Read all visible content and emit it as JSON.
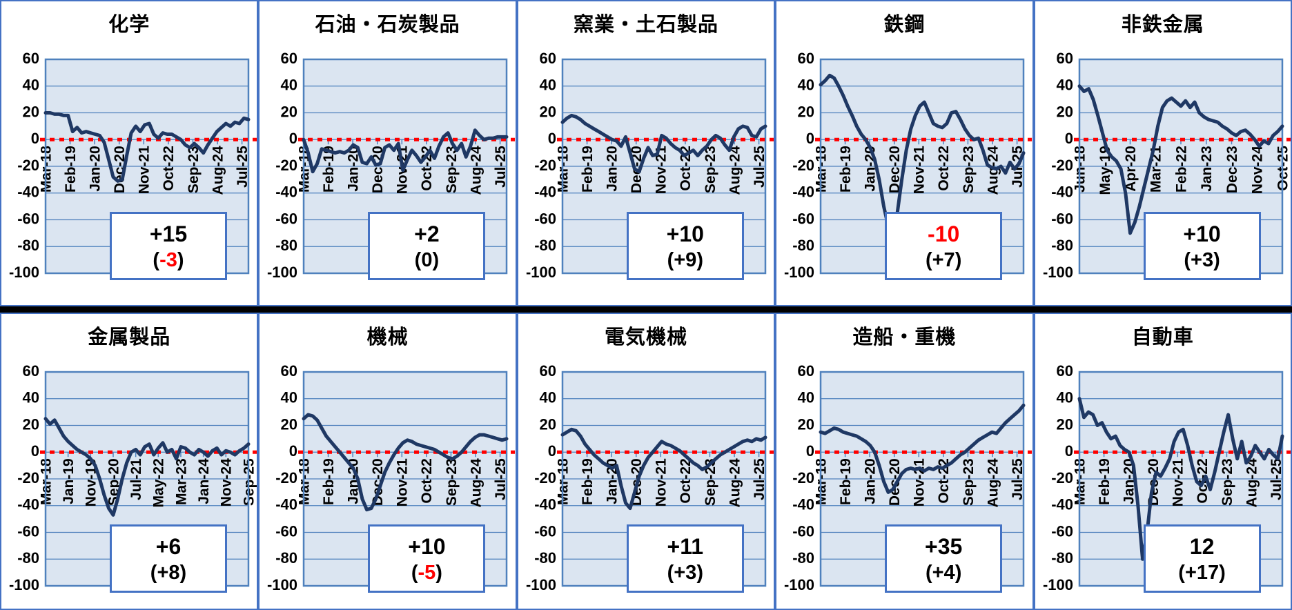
{
  "axis": {
    "y_max": 60,
    "y_min": -100,
    "y_ticks": [
      60,
      40,
      20,
      0,
      -20,
      -40,
      -60,
      -80,
      -100
    ]
  },
  "colors": {
    "cell_border": "#4472c4",
    "grid_blue": "#4f81bd",
    "plot_fill": "#dbe5f1",
    "series_navy": "#1f3864",
    "zero_line_red": "#ff0000",
    "negative_red": "#ff0000"
  },
  "chart_data": [
    {
      "type": "line",
      "title": "化学",
      "ylim": [
        -100,
        60
      ],
      "grid": true,
      "legend": "none",
      "x_labels": [
        "Mar-18",
        "Feb-19",
        "Jan-20",
        "Dec-20",
        "Nov-21",
        "Oct-22",
        "Sep-23",
        "Aug-24",
        "Jul-25"
      ],
      "tick_step_frac": 0.121,
      "values": [
        20,
        20,
        19,
        19,
        18,
        18,
        6,
        9,
        5,
        6,
        5,
        4,
        3,
        -2,
        -15,
        -28,
        -31,
        -30,
        -12,
        5,
        10,
        6,
        11,
        12,
        4,
        1,
        5,
        4,
        4,
        2,
        0,
        -4,
        -6,
        -3,
        -6,
        -10,
        -4,
        1,
        6,
        9,
        12,
        10,
        13,
        12,
        16,
        15
      ],
      "box_value": "+15",
      "box_value_red": false,
      "box_change_open": "(",
      "box_change_value": "-3",
      "box_change_red": true,
      "box_change_close": ")"
    },
    {
      "type": "line",
      "title": "石油・石炭製品",
      "ylim": [
        -100,
        60
      ],
      "grid": true,
      "legend": "none",
      "x_labels": [
        "Mar-18",
        "Feb-19",
        "Jan-20",
        "Dec-20",
        "Nov-21",
        "Oct-22",
        "Sep-23",
        "Aug-24",
        "Jul-25"
      ],
      "tick_step_frac": 0.121,
      "values": [
        0,
        -10,
        -24,
        -18,
        -7,
        -8,
        -9,
        -10,
        -9,
        -10,
        -8,
        -4,
        -6,
        -17,
        -18,
        -13,
        -19,
        -18,
        -6,
        -4,
        -8,
        -3,
        -23,
        -15,
        -8,
        -12,
        -17,
        -13,
        -8,
        -14,
        -5,
        2,
        5,
        -3,
        -8,
        -3,
        -13,
        -5,
        7,
        3,
        0,
        1,
        1,
        2,
        2,
        2
      ],
      "box_value": "+2",
      "box_value_red": false,
      "box_change_open": "(",
      "box_change_value": "0",
      "box_change_red": false,
      "box_change_close": ")"
    },
    {
      "type": "line",
      "title": "窯業・土石製品",
      "ylim": [
        -100,
        60
      ],
      "grid": true,
      "legend": "none",
      "x_labels": [
        "Mar-18",
        "Feb-19",
        "Jan-20",
        "Dec-20",
        "Nov-21",
        "Oct-22",
        "Sep-23",
        "Aug-24",
        "Jul-25"
      ],
      "tick_step_frac": 0.121,
      "values": [
        13,
        16,
        18,
        17,
        15,
        12,
        10,
        8,
        6,
        4,
        2,
        0,
        -1,
        -5,
        2,
        -10,
        -22,
        -24,
        -14,
        -6,
        -12,
        -11,
        3,
        1,
        -3,
        -6,
        -8,
        -12,
        -10,
        -8,
        -12,
        -8,
        -5,
        0,
        3,
        1,
        -4,
        -8,
        2,
        8,
        10,
        9,
        3,
        2,
        8,
        10
      ],
      "box_value": "+10",
      "box_value_red": false,
      "box_change_open": "(",
      "box_change_value": "+9",
      "box_change_red": false,
      "box_change_close": ")"
    },
    {
      "type": "line",
      "title": "鉄鋼",
      "ylim": [
        -100,
        60
      ],
      "grid": true,
      "legend": "none",
      "x_labels": [
        "Mar-18",
        "Feb-19",
        "Jan-20",
        "Dec-20",
        "Nov-21",
        "Oct-22",
        "Sep-23",
        "Aug-24",
        "Jul-25"
      ],
      "tick_step_frac": 0.121,
      "values": [
        41,
        44,
        48,
        46,
        40,
        33,
        25,
        18,
        10,
        4,
        0,
        -6,
        -15,
        -30,
        -50,
        -65,
        -70,
        -55,
        -30,
        -8,
        8,
        18,
        25,
        28,
        20,
        12,
        10,
        9,
        12,
        20,
        21,
        15,
        8,
        3,
        0,
        1,
        -8,
        -19,
        -21,
        -22,
        -20,
        -25,
        -17,
        -22,
        -18,
        -10
      ],
      "box_value": "-10",
      "box_value_red": true,
      "box_change_open": "(",
      "box_change_value": "+7",
      "box_change_red": false,
      "box_change_close": ")"
    },
    {
      "type": "line",
      "title": "非鉄金属",
      "ylim": [
        -100,
        60
      ],
      "grid": true,
      "legend": "none",
      "x_labels": [
        "Jun-18",
        "May-19",
        "Apr-20",
        "Mar-21",
        "Feb-22",
        "Jan-23",
        "Dec-23",
        "Nov-24",
        "Oct-25"
      ],
      "tick_step_frac": 0.125,
      "values": [
        40,
        36,
        38,
        30,
        18,
        5,
        -8,
        -13,
        -16,
        -22,
        -40,
        -70,
        -62,
        -50,
        -36,
        -22,
        -8,
        10,
        24,
        29,
        31,
        28,
        25,
        29,
        24,
        28,
        20,
        17,
        15,
        14,
        13,
        10,
        8,
        5,
        3,
        6,
        7,
        4,
        0,
        -5,
        -1,
        -3,
        3,
        6,
        10
      ],
      "box_value": "+10",
      "box_value_red": false,
      "box_change_open": "(",
      "box_change_value": "+3",
      "box_change_red": false,
      "box_change_close": ")"
    },
    {
      "type": "line",
      "title": "金属製品",
      "ylim": [
        -100,
        60
      ],
      "grid": true,
      "legend": "none",
      "x_labels": [
        "Mar-18",
        "Jan-19",
        "Nov-19",
        "Sep-20",
        "Jul-21",
        "May-22",
        "Mar-23",
        "Jan-24",
        "Nov-24",
        "Sep-25"
      ],
      "tick_step_frac": 0.1111,
      "values": [
        25,
        21,
        24,
        18,
        12,
        8,
        5,
        2,
        0,
        -2,
        -5,
        -10,
        -20,
        -32,
        -42,
        -47,
        -35,
        -20,
        -8,
        0,
        2,
        -2,
        4,
        6,
        -2,
        3,
        7,
        0,
        2,
        -5,
        4,
        3,
        0,
        -2,
        2,
        0,
        -3,
        1,
        3,
        -2,
        1,
        0,
        -2,
        1,
        3,
        6
      ],
      "box_value": "+6",
      "box_value_red": false,
      "box_change_open": "(",
      "box_change_value": "+8",
      "box_change_red": false,
      "box_change_close": ")"
    },
    {
      "type": "line",
      "title": "機械",
      "ylim": [
        -100,
        60
      ],
      "grid": true,
      "legend": "none",
      "x_labels": [
        "Mar-18",
        "Feb-19",
        "Jan-20",
        "Dec-20",
        "Nov-21",
        "Oct-22",
        "Sep-23",
        "Aug-24",
        "Jul-25"
      ],
      "tick_step_frac": 0.121,
      "values": [
        25,
        28,
        27,
        24,
        18,
        12,
        8,
        4,
        0,
        -4,
        -8,
        -12,
        -20,
        -35,
        -43,
        -42,
        -35,
        -25,
        -15,
        -8,
        -2,
        3,
        7,
        9,
        8,
        6,
        5,
        4,
        3,
        2,
        0,
        -2,
        -4,
        -5,
        -3,
        0,
        4,
        8,
        11,
        13,
        13,
        12,
        11,
        10,
        9,
        10
      ],
      "box_value": "+10",
      "box_value_red": false,
      "box_change_open": "(",
      "box_change_value": "-5",
      "box_change_red": true,
      "box_change_close": ")"
    },
    {
      "type": "line",
      "title": "電気機械",
      "ylim": [
        -100,
        60
      ],
      "grid": true,
      "legend": "none",
      "x_labels": [
        "Mar-18",
        "Feb-19",
        "Jan-20",
        "Dec-20",
        "Nov-21",
        "Oct-22",
        "Sep-23",
        "Aug-24",
        "Jul-25"
      ],
      "tick_step_frac": 0.121,
      "values": [
        13,
        15,
        17,
        16,
        12,
        6,
        2,
        -2,
        -5,
        -8,
        -10,
        -12,
        -10,
        -25,
        -38,
        -42,
        -30,
        -18,
        -10,
        -4,
        0,
        4,
        8,
        6,
        5,
        3,
        1,
        -2,
        -5,
        -8,
        -10,
        -13,
        -11,
        -8,
        -5,
        -2,
        0,
        2,
        4,
        6,
        8,
        9,
        8,
        10,
        9,
        11
      ],
      "box_value": "+11",
      "box_value_red": false,
      "box_change_open": "(",
      "box_change_value": "+3",
      "box_change_red": false,
      "box_change_close": ")"
    },
    {
      "type": "line",
      "title": "造船・重機",
      "ylim": [
        -100,
        60
      ],
      "grid": true,
      "legend": "none",
      "x_labels": [
        "Mar-18",
        "Feb-19",
        "Jan-20",
        "Dec-20",
        "Nov-21",
        "Oct-22",
        "Sep-23",
        "Aug-24",
        "Jul-25"
      ],
      "tick_step_frac": 0.121,
      "values": [
        15,
        14,
        16,
        18,
        17,
        15,
        14,
        13,
        12,
        10,
        8,
        5,
        0,
        -10,
        -22,
        -30,
        -28,
        -22,
        -16,
        -13,
        -12,
        -13,
        -12,
        -14,
        -12,
        -13,
        -11,
        -12,
        -10,
        -8,
        -5,
        -2,
        0,
        3,
        6,
        9,
        11,
        13,
        15,
        14,
        18,
        22,
        25,
        28,
        31,
        35
      ],
      "box_value": "+35",
      "box_value_red": false,
      "box_change_open": "(",
      "box_change_value": "+4",
      "box_change_red": false,
      "box_change_close": ")"
    },
    {
      "type": "line",
      "title": "自動車",
      "ylim": [
        -100,
        60
      ],
      "grid": true,
      "legend": "none",
      "x_labels": [
        "Mar-18",
        "Feb-19",
        "Jan-20",
        "Dec-20",
        "Nov-21",
        "Oct-22",
        "Sep-23",
        "Aug-24",
        "Jul-25"
      ],
      "tick_step_frac": 0.121,
      "values": [
        40,
        26,
        30,
        28,
        20,
        22,
        15,
        10,
        12,
        5,
        2,
        0,
        -10,
        -40,
        -80,
        -60,
        -30,
        -15,
        -18,
        -12,
        -5,
        8,
        15,
        17,
        5,
        -10,
        -22,
        -25,
        -18,
        -28,
        -15,
        0,
        15,
        28,
        10,
        -5,
        8,
        -8,
        -3,
        5,
        0,
        -5,
        2,
        -2,
        -5,
        12
      ],
      "box_value": "12",
      "box_value_red": false,
      "box_change_open": "(",
      "box_change_value": "+17",
      "box_change_red": false,
      "box_change_close": ")"
    }
  ]
}
